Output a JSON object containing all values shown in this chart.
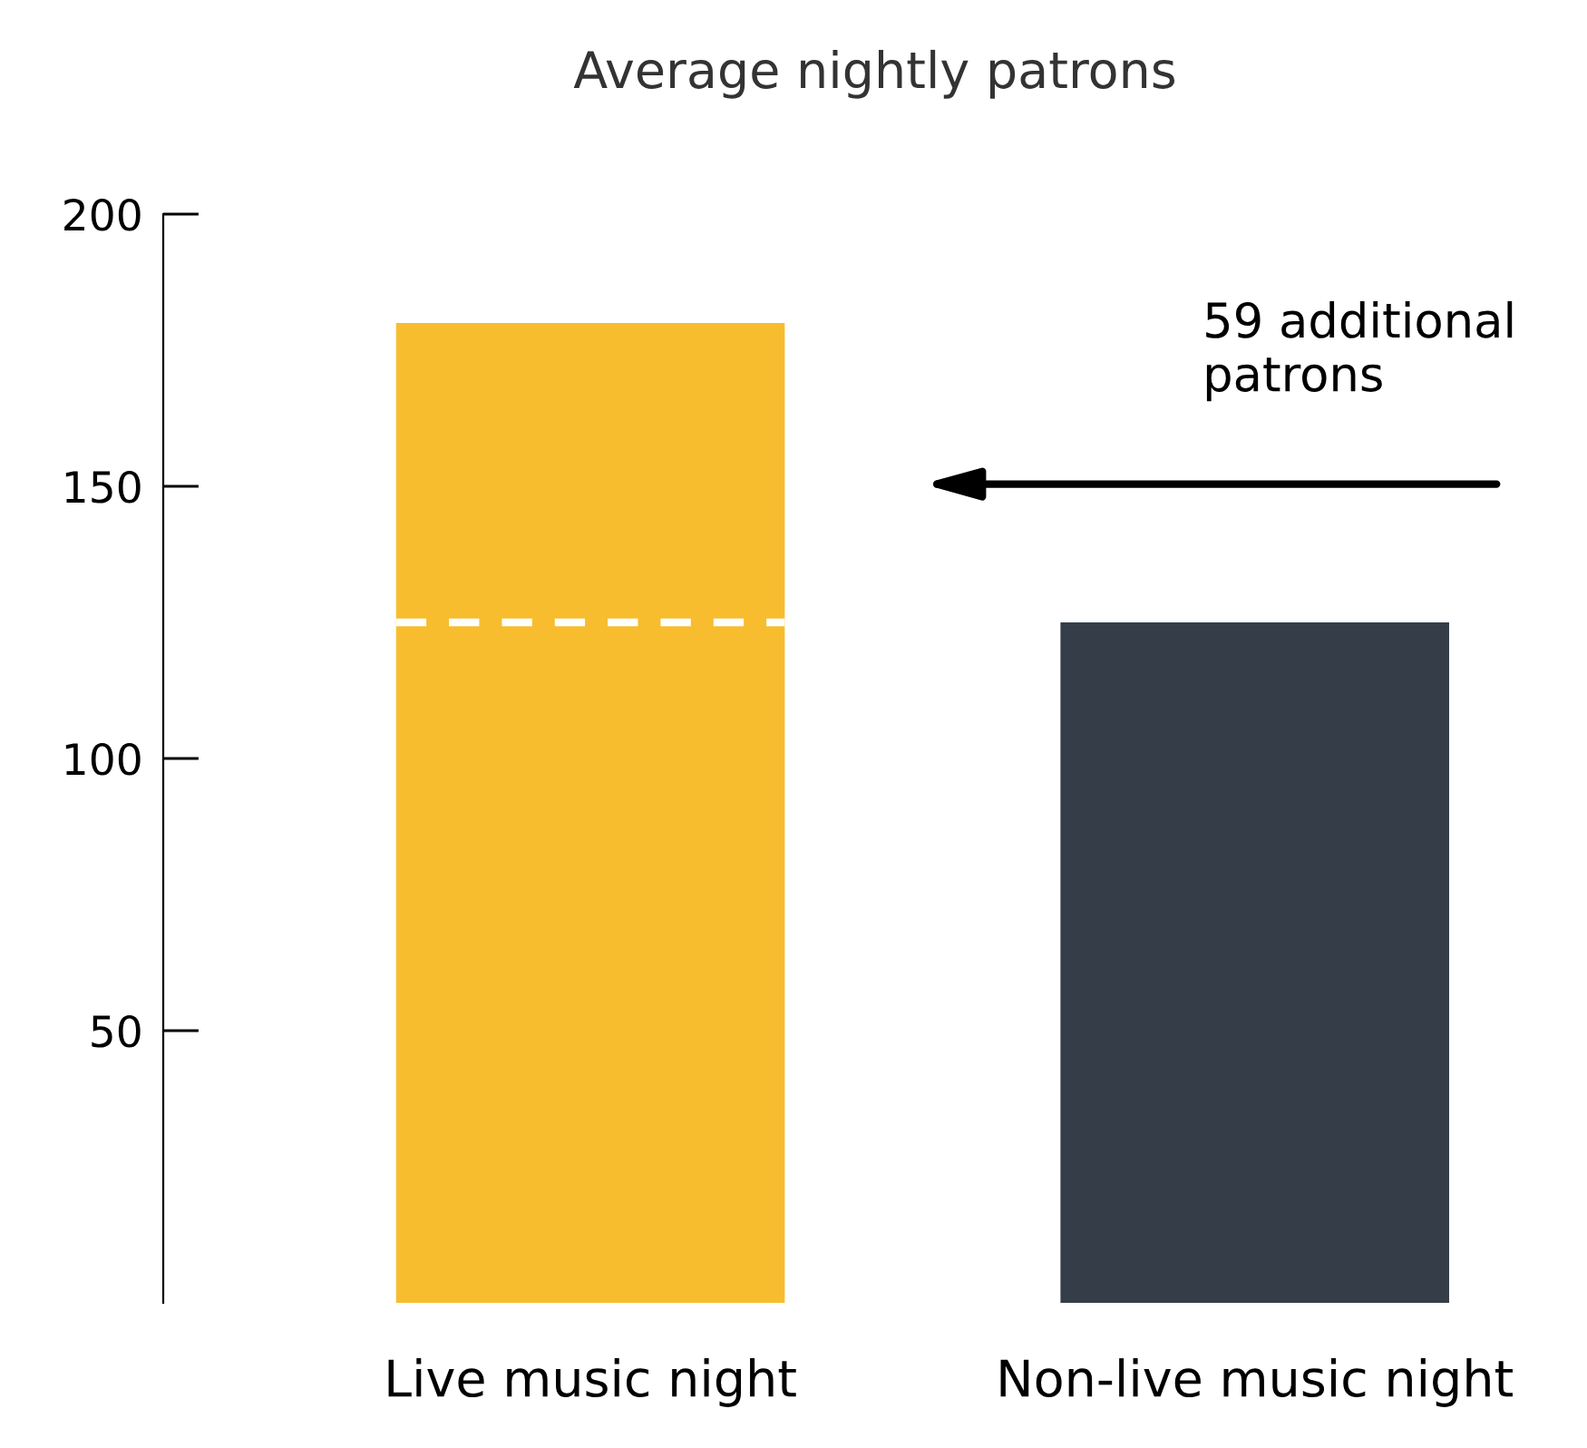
{
  "chart_data": {
    "type": "bar",
    "title": "Average nightly patrons",
    "categories": [
      "Live music night",
      "Non-live music night"
    ],
    "values": [
      180,
      125
    ],
    "colors": [
      "#f7bd2f",
      "#343d48"
    ],
    "ylim": [
      0,
      200
    ],
    "yticks": [
      50,
      100,
      150,
      200
    ],
    "ref_lines": [
      {
        "axis": "y",
        "value": 125,
        "color": "#ffffff",
        "line_style": "dashed"
      }
    ],
    "annotations": [
      "59 additional patrons"
    ],
    "grid": false,
    "legend": false
  }
}
